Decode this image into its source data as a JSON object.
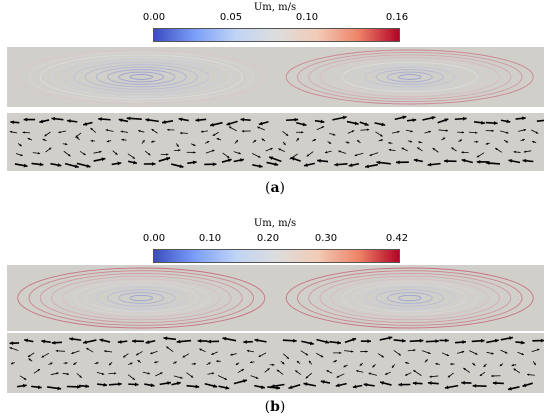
{
  "figure_a": {
    "caption_letter": "a",
    "colorbar": {
      "title": "Um, m/s",
      "tick_labels": [
        "0.00",
        "0.05",
        "0.10",
        "0.16"
      ],
      "tick_values": [
        0.0,
        0.05,
        0.1,
        0.16
      ],
      "range": [
        0.0,
        0.16
      ]
    }
  },
  "figure_b": {
    "caption_letter": "b",
    "colorbar": {
      "title": "Um, m/s",
      "tick_labels": [
        "0.00",
        "0.10",
        "0.20",
        "0.30",
        "0.42"
      ],
      "tick_values": [
        0.0,
        0.1,
        0.2,
        0.3,
        0.42
      ],
      "range": [
        0.0,
        0.42
      ]
    }
  },
  "colors": {
    "panel_bg": "#d0cfca",
    "low": "#3b4cc0",
    "mid": "#dddddd",
    "high": "#b40426"
  }
}
